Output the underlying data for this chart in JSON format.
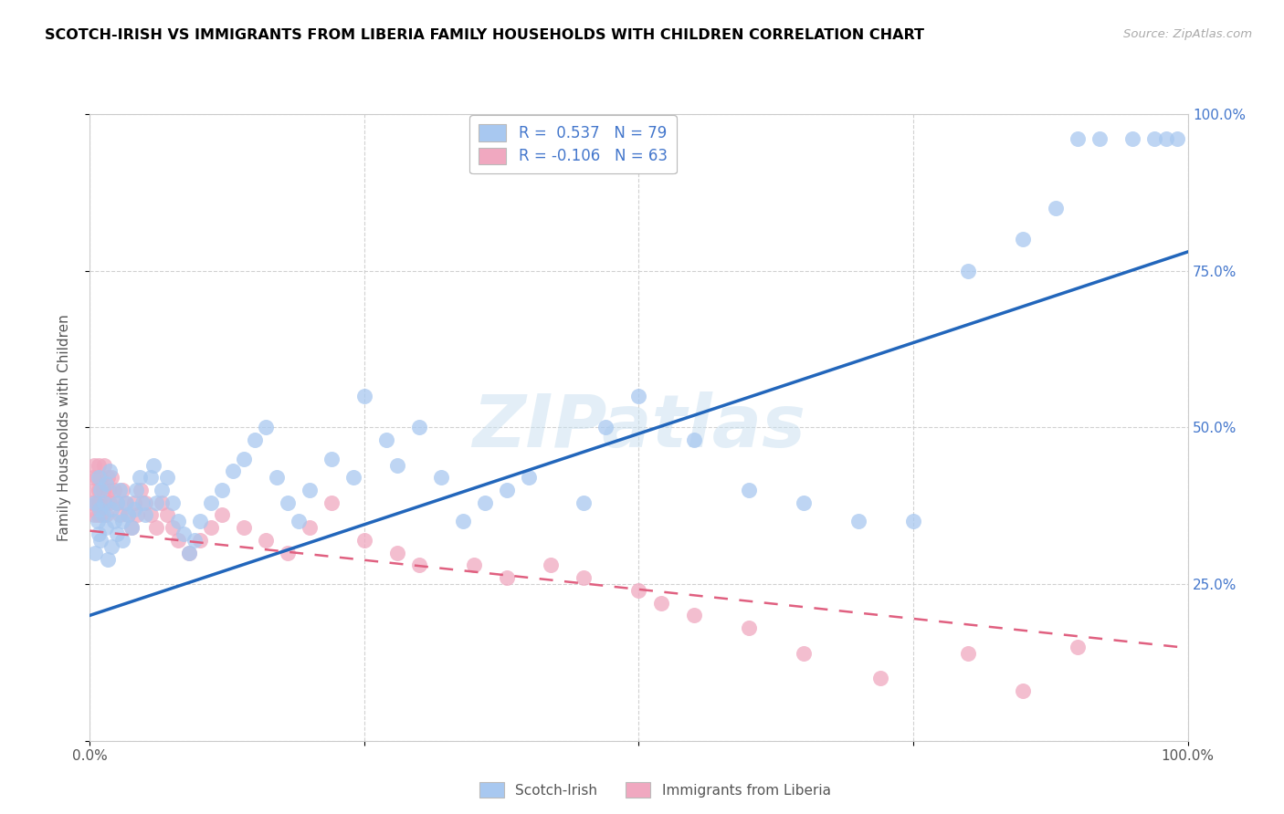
{
  "title": "SCOTCH-IRISH VS IMMIGRANTS FROM LIBERIA FAMILY HOUSEHOLDS WITH CHILDREN CORRELATION CHART",
  "source": "Source: ZipAtlas.com",
  "ylabel": "Family Households with Children",
  "watermark": "ZIPatlas",
  "series1_name": "Scotch-Irish",
  "series2_name": "Immigrants from Liberia",
  "series1_color": "#a8c8f0",
  "series2_color": "#f0a8c0",
  "series1_line_color": "#2266bb",
  "series2_line_color": "#e06080",
  "legend_text_color": "#4477cc",
  "R1": 0.537,
  "N1": 79,
  "R2": -0.106,
  "N2": 63,
  "xmin": 0.0,
  "xmax": 1.0,
  "ymin": 0.0,
  "ymax": 1.0,
  "si_line_y0": 0.2,
  "si_line_y1": 0.78,
  "lib_line_y0": 0.335,
  "lib_line_y1": 0.148,
  "scotch_irish_x": [
    0.005,
    0.005,
    0.007,
    0.008,
    0.008,
    0.009,
    0.01,
    0.01,
    0.012,
    0.013,
    0.015,
    0.015,
    0.016,
    0.018,
    0.02,
    0.02,
    0.022,
    0.025,
    0.025,
    0.027,
    0.03,
    0.03,
    0.033,
    0.035,
    0.038,
    0.04,
    0.042,
    0.045,
    0.048,
    0.05,
    0.055,
    0.058,
    0.06,
    0.065,
    0.07,
    0.075,
    0.08,
    0.085,
    0.09,
    0.095,
    0.1,
    0.11,
    0.12,
    0.13,
    0.14,
    0.15,
    0.16,
    0.17,
    0.18,
    0.19,
    0.2,
    0.22,
    0.24,
    0.25,
    0.27,
    0.28,
    0.3,
    0.32,
    0.34,
    0.36,
    0.38,
    0.4,
    0.45,
    0.47,
    0.5,
    0.55,
    0.6,
    0.65,
    0.7,
    0.75,
    0.8,
    0.85,
    0.88,
    0.9,
    0.92,
    0.95,
    0.97,
    0.98,
    0.99
  ],
  "scotch_irish_y": [
    0.3,
    0.38,
    0.35,
    0.42,
    0.33,
    0.37,
    0.32,
    0.4,
    0.36,
    0.38,
    0.34,
    0.41,
    0.29,
    0.43,
    0.37,
    0.31,
    0.35,
    0.33,
    0.38,
    0.4,
    0.35,
    0.32,
    0.38,
    0.36,
    0.34,
    0.37,
    0.4,
    0.42,
    0.38,
    0.36,
    0.42,
    0.44,
    0.38,
    0.4,
    0.42,
    0.38,
    0.35,
    0.33,
    0.3,
    0.32,
    0.35,
    0.38,
    0.4,
    0.43,
    0.45,
    0.48,
    0.5,
    0.42,
    0.38,
    0.35,
    0.4,
    0.45,
    0.42,
    0.55,
    0.48,
    0.44,
    0.5,
    0.42,
    0.35,
    0.38,
    0.4,
    0.42,
    0.38,
    0.5,
    0.55,
    0.48,
    0.4,
    0.38,
    0.35,
    0.35,
    0.75,
    0.8,
    0.85,
    0.96,
    0.96,
    0.96,
    0.96,
    0.96,
    0.96
  ],
  "liberia_x": [
    0.002,
    0.003,
    0.004,
    0.004,
    0.005,
    0.006,
    0.006,
    0.007,
    0.008,
    0.008,
    0.009,
    0.01,
    0.01,
    0.012,
    0.013,
    0.014,
    0.015,
    0.016,
    0.017,
    0.018,
    0.02,
    0.022,
    0.025,
    0.027,
    0.03,
    0.032,
    0.035,
    0.038,
    0.04,
    0.043,
    0.046,
    0.05,
    0.055,
    0.06,
    0.065,
    0.07,
    0.075,
    0.08,
    0.09,
    0.1,
    0.11,
    0.12,
    0.14,
    0.16,
    0.18,
    0.2,
    0.22,
    0.25,
    0.28,
    0.3,
    0.35,
    0.38,
    0.42,
    0.45,
    0.5,
    0.52,
    0.55,
    0.6,
    0.65,
    0.72,
    0.8,
    0.85,
    0.9
  ],
  "liberia_y": [
    0.38,
    0.42,
    0.36,
    0.44,
    0.4,
    0.38,
    0.42,
    0.36,
    0.4,
    0.44,
    0.38,
    0.42,
    0.36,
    0.4,
    0.44,
    0.38,
    0.36,
    0.42,
    0.4,
    0.38,
    0.42,
    0.4,
    0.38,
    0.36,
    0.4,
    0.38,
    0.36,
    0.34,
    0.38,
    0.36,
    0.4,
    0.38,
    0.36,
    0.34,
    0.38,
    0.36,
    0.34,
    0.32,
    0.3,
    0.32,
    0.34,
    0.36,
    0.34,
    0.32,
    0.3,
    0.34,
    0.38,
    0.32,
    0.3,
    0.28,
    0.28,
    0.26,
    0.28,
    0.26,
    0.24,
    0.22,
    0.2,
    0.18,
    0.14,
    0.1,
    0.14,
    0.08,
    0.15
  ]
}
